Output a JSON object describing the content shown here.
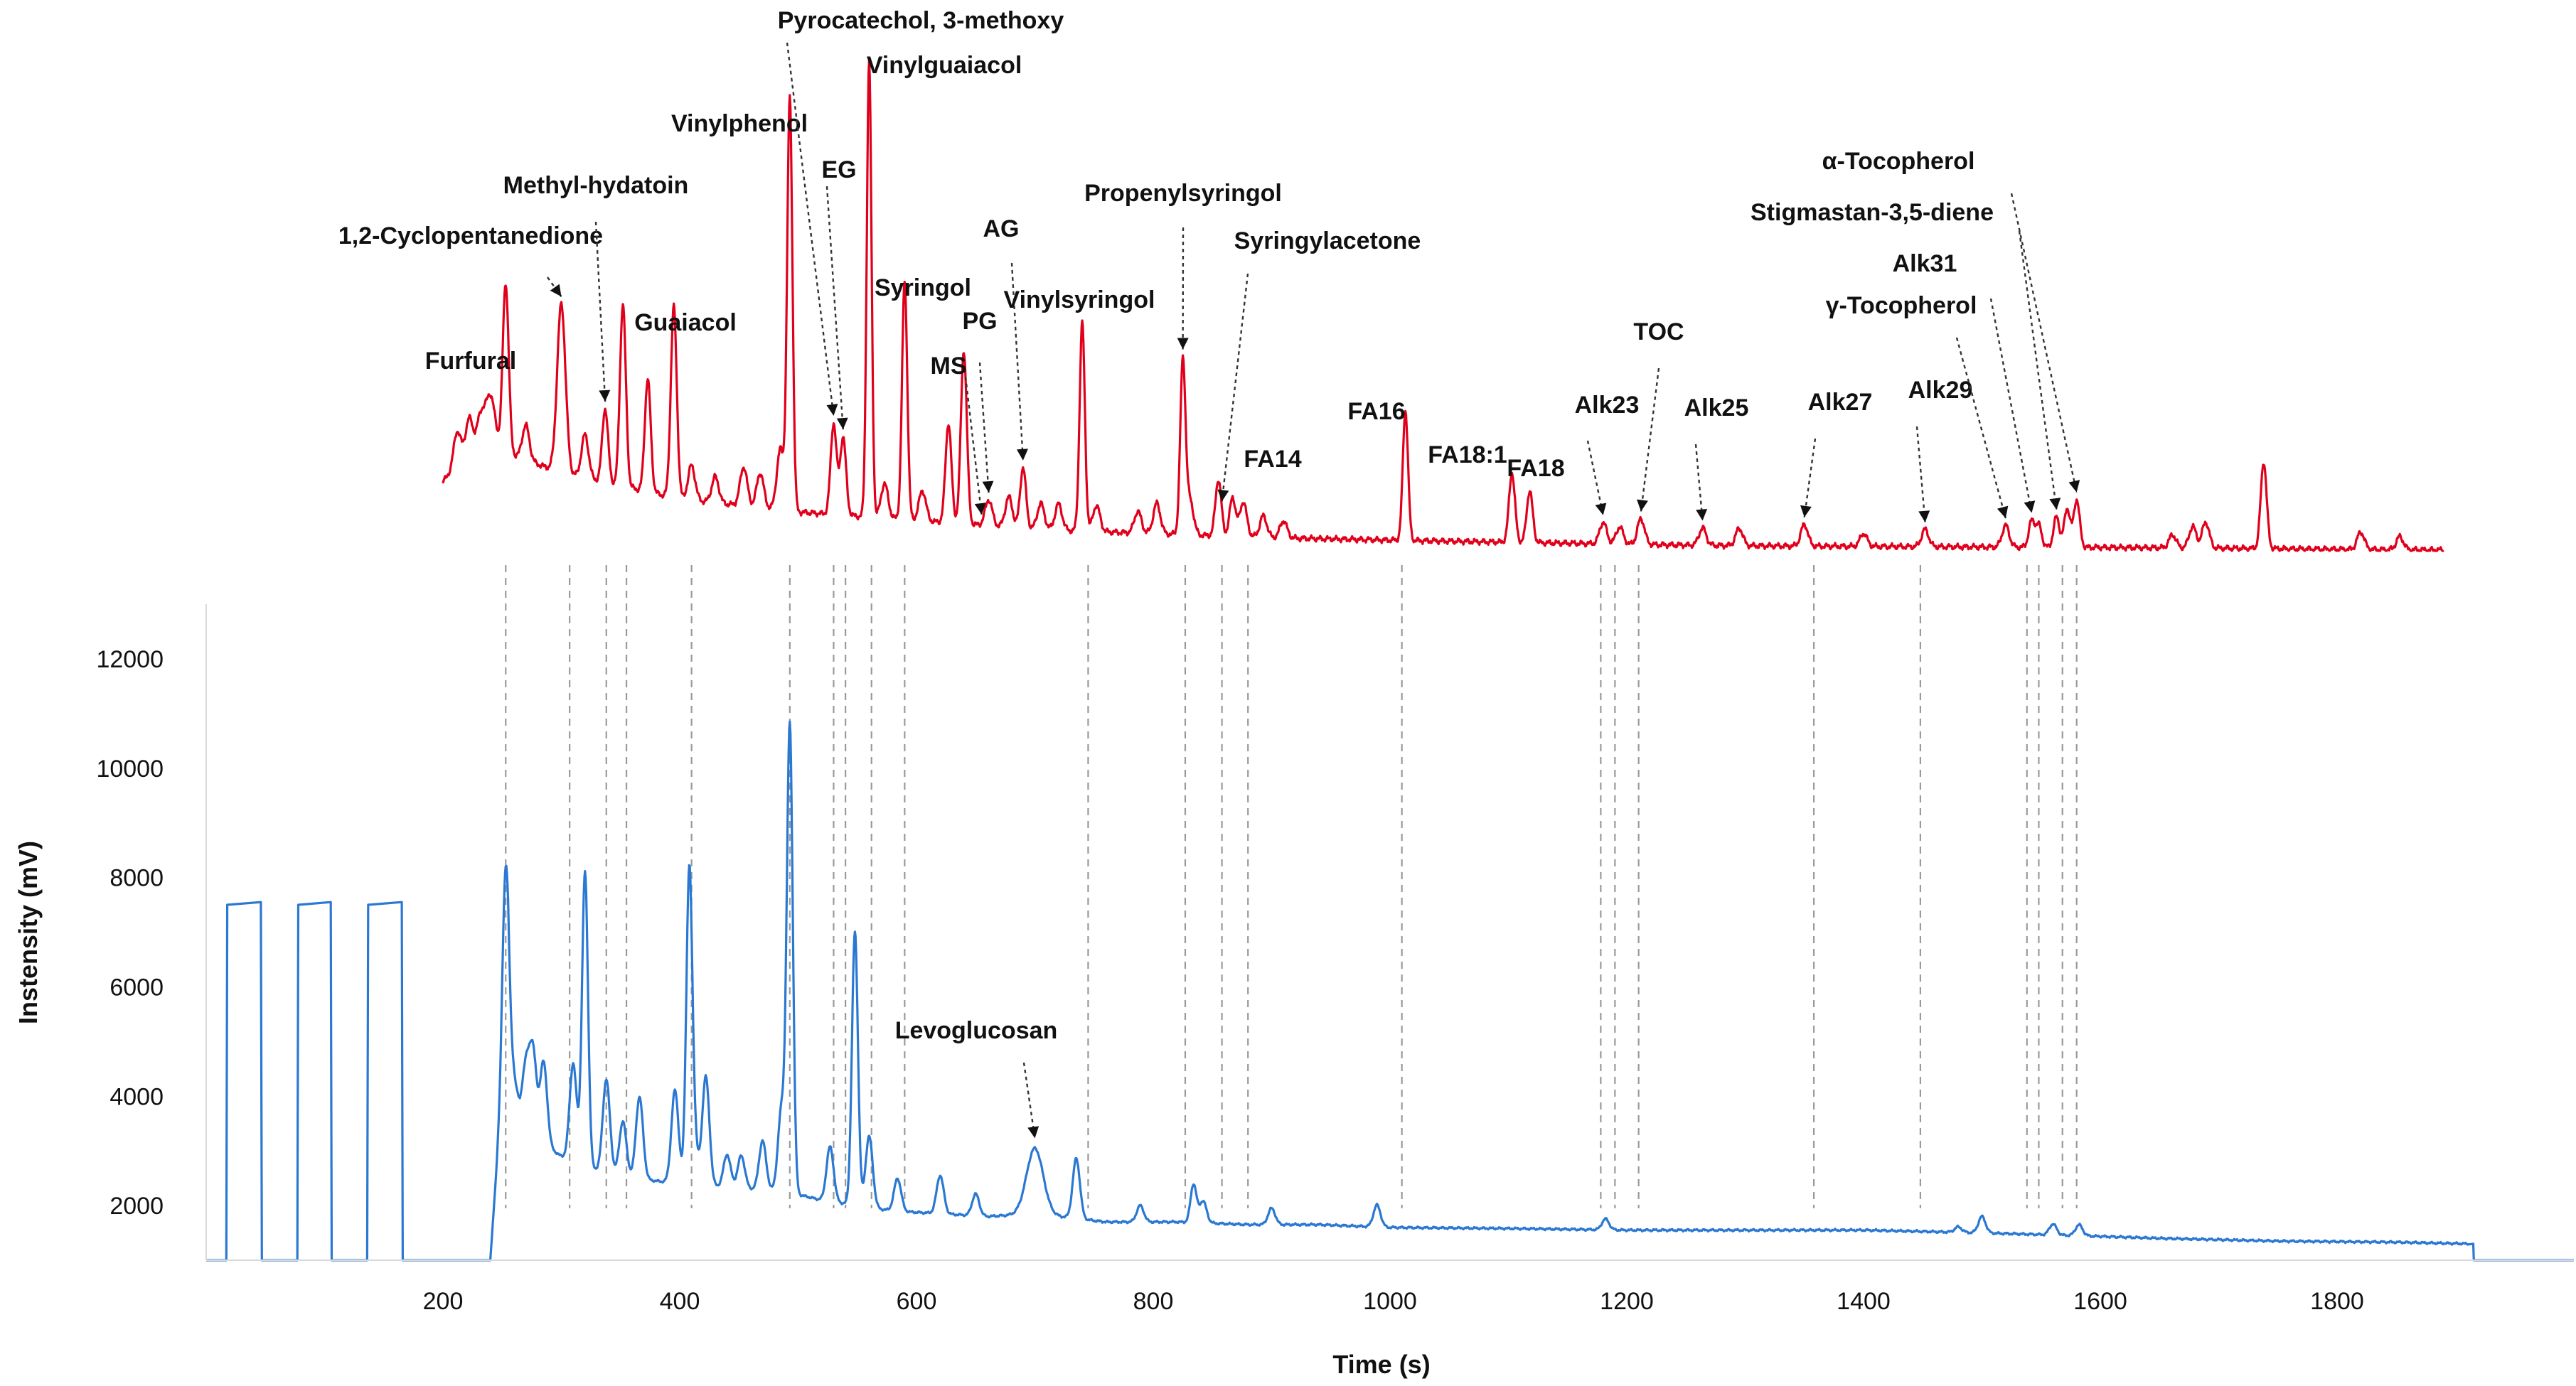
{
  "chart_data": {
    "type": "line",
    "xlabel": "Time (s)",
    "ylabel": "Instensity (mV)",
    "xlim": [
      0,
      2000
    ],
    "x_ticks": [
      200,
      400,
      600,
      800,
      1000,
      1200,
      1400,
      1600,
      1800
    ],
    "ylim": [
      1000,
      13000
    ],
    "y_ticks": [
      2000,
      4000,
      6000,
      8000,
      10000,
      12000
    ],
    "grid": false,
    "legend": "none",
    "colors": {
      "top_trace": "#e0001b",
      "bottom_trace": "#2a78d2",
      "levoglucosan_label": "#e0001b"
    },
    "series": [
      {
        "plot": "top",
        "color": "#e0001b",
        "baseline_x": [
          200,
          230,
          260,
          300,
          400,
          500,
          600,
          700,
          800,
          900,
          1000,
          1100,
          1200,
          1300,
          1400,
          1500,
          1600,
          1700,
          1800,
          1890
        ],
        "baseline_y": [
          16,
          25,
          22,
          18,
          12,
          9,
          7,
          5,
          4,
          3,
          2.5,
          2,
          1.5,
          1.2,
          1,
          0.9,
          0.8,
          0.6,
          0.4,
          0.2
        ],
        "peaks_x": [
          212,
          222,
          232,
          240,
          253,
          270,
          300,
          320,
          337,
          352,
          373,
          395,
          410,
          430,
          454,
          468,
          485,
          493,
          530,
          538,
          560,
          573,
          590,
          605,
          627,
          640,
          661,
          678,
          690,
          705,
          720,
          740,
          752,
          787,
          803,
          825,
          831,
          855,
          867,
          876,
          893,
          910,
          1013,
          1103,
          1118,
          1180,
          1194,
          1212,
          1264,
          1295,
          1350,
          1400,
          1452,
          1520,
          1542,
          1548,
          1563,
          1572,
          1580,
          1661,
          1678,
          1689,
          1738,
          1820,
          1853
        ],
        "peaks_y": [
          8,
          8,
          6,
          12,
          39,
          8,
          39,
          10,
          17,
          42,
          26,
          44,
          8,
          6,
          9,
          8,
          14,
          95,
          21,
          18,
          105,
          8,
          55,
          7,
          23,
          40,
          6,
          7,
          14,
          6,
          6,
          48,
          6,
          5,
          7,
          40,
          8,
          13,
          9,
          8,
          5,
          4,
          30,
          16,
          12,
          5,
          4,
          6,
          4,
          4,
          5,
          3,
          4,
          5,
          6,
          5,
          7,
          9,
          11,
          3,
          5,
          6,
          20,
          4,
          3
        ],
        "peaks_w": [
          3,
          3,
          3,
          4,
          2.5,
          3,
          3.5,
          3,
          2.5,
          2.5,
          2.5,
          2.5,
          3,
          3,
          3,
          3,
          3,
          2.2,
          2.5,
          2.5,
          2,
          3,
          2.2,
          3,
          2.5,
          2.5,
          3,
          3,
          2.5,
          3,
          3,
          2.2,
          3,
          3,
          3,
          2.2,
          3,
          2.5,
          2.5,
          3,
          3,
          3,
          2.2,
          2.5,
          2.5,
          3,
          3,
          3,
          3,
          3,
          3,
          3,
          3,
          3,
          2.5,
          2.5,
          2.5,
          2.5,
          2.5,
          3,
          3,
          3,
          2.5,
          3,
          3
        ]
      },
      {
        "plot": "bottom",
        "color": "#2a78d2",
        "baseline_x": [
          240,
          245,
          250,
          255,
          265,
          280,
          300,
          320,
          340,
          360,
          380,
          400,
          430,
          460,
          490,
          520,
          550,
          580,
          620,
          660,
          700,
          760,
          820,
          880,
          940,
          1000,
          1100,
          1200,
          1300,
          1400,
          1500,
          1580,
          1650,
          1750,
          1850,
          1910
        ],
        "baseline_y": [
          1000,
          2600,
          4500,
          5200,
          3700,
          3200,
          2900,
          2700,
          2600,
          2500,
          2450,
          2400,
          2350,
          2300,
          2250,
          2100,
          2000,
          1900,
          1850,
          1800,
          1850,
          1700,
          1700,
          1650,
          1650,
          1600,
          1580,
          1550,
          1550,
          1550,
          1500,
          1450,
          1400,
          1350,
          1330,
          1300
        ],
        "peaks_x": [
          253,
          270,
          276,
          285,
          310,
          320,
          338,
          352,
          366,
          396,
          408,
          412,
          422,
          440,
          452,
          470,
          486,
          493,
          527,
          548,
          560,
          584,
          620,
          650,
          700,
          735,
          789,
          834,
          842,
          900,
          989,
          1182,
          1480,
          1500,
          1560,
          1582
        ],
        "peaks_y": [
          3300,
          1000,
          1500,
          1500,
          1800,
          5400,
          1700,
          1000,
          1500,
          1700,
          5500,
          800,
          2000,
          600,
          600,
          900,
          1500,
          8500,
          1000,
          5000,
          1300,
          600,
          700,
          400,
          1200,
          1100,
          300,
          700,
          400,
          300,
          400,
          200,
          100,
          300,
          200,
          200
        ],
        "peaks_w": [
          2.5,
          3,
          3,
          3,
          3,
          2.5,
          3,
          3,
          3,
          3,
          2.5,
          3,
          3,
          3,
          3,
          3,
          3,
          2.5,
          3,
          2.5,
          3,
          3,
          3,
          3,
          7,
          3,
          3,
          2.5,
          3,
          3,
          3,
          3,
          3,
          3,
          3,
          3
        ],
        "pulses": [
          [
            17,
            47
          ],
          [
            77,
            106
          ],
          [
            136,
            166
          ]
        ],
        "pulse_level": 7550,
        "pulse_base": 1000,
        "tail_start": 1915,
        "tail_level": 1000
      }
    ],
    "annotations": [
      {
        "label": "Furfural",
        "peak_x": 253,
        "arrow": false
      },
      {
        "label": "1,2-Cyclopentanedione",
        "peak_x": 300,
        "arrow": true
      },
      {
        "label": "Methyl-hydatoin",
        "peak_x": 337,
        "arrow": true
      },
      {
        "label": "Guaiacol",
        "peak_x": 395,
        "arrow": false
      },
      {
        "label": "Vinylphenol",
        "peak_x": 493,
        "arrow": false
      },
      {
        "label": "Pyrocatechol, 3-methoxy",
        "peak_x": 530,
        "arrow": true
      },
      {
        "label": "EG",
        "peak_x": 538,
        "arrow": true
      },
      {
        "label": "Vinylguaiacol",
        "peak_x": 560,
        "arrow": false
      },
      {
        "label": "Syringol",
        "peak_x": 590,
        "arrow": false
      },
      {
        "label": "MS",
        "peak_x": 655,
        "arrow": true
      },
      {
        "label": "PG",
        "peak_x": 661,
        "arrow": true
      },
      {
        "label": "AG",
        "peak_x": 690,
        "arrow": true
      },
      {
        "label": "Vinylsyringol",
        "peak_x": 740,
        "arrow": false
      },
      {
        "label": "Propenylsyringol",
        "peak_x": 825,
        "arrow": true
      },
      {
        "label": "Syringylacetone",
        "peak_x": 858,
        "arrow": true
      },
      {
        "label": "FA14",
        "peak_x": 893,
        "arrow": false
      },
      {
        "label": "FA16",
        "peak_x": 1013,
        "arrow": false
      },
      {
        "label": "FA18:1",
        "peak_x": 1103,
        "arrow": false
      },
      {
        "label": "FA18",
        "peak_x": 1118,
        "arrow": false
      },
      {
        "label": "Alk23",
        "peak_x": 1180,
        "arrow": true
      },
      {
        "label": "TOC",
        "peak_x": 1212,
        "arrow": true
      },
      {
        "label": "Alk25",
        "peak_x": 1264,
        "arrow": true
      },
      {
        "label": "Alk27",
        "peak_x": 1350,
        "arrow": true
      },
      {
        "label": "Alk29",
        "peak_x": 1452,
        "arrow": true
      },
      {
        "label": "γ-Tocopherol",
        "peak_x": 1520,
        "arrow": true
      },
      {
        "label": "Alk31",
        "peak_x": 1542,
        "arrow": true
      },
      {
        "label": "Stigmastan-3,5-diene",
        "peak_x": 1563,
        "arrow": true
      },
      {
        "label": "α-Tocopherol",
        "peak_x": 1580,
        "arrow": true
      },
      {
        "label": "Levoglucosan",
        "peak_x": 700,
        "arrow": true,
        "plot": "bottom"
      }
    ]
  }
}
